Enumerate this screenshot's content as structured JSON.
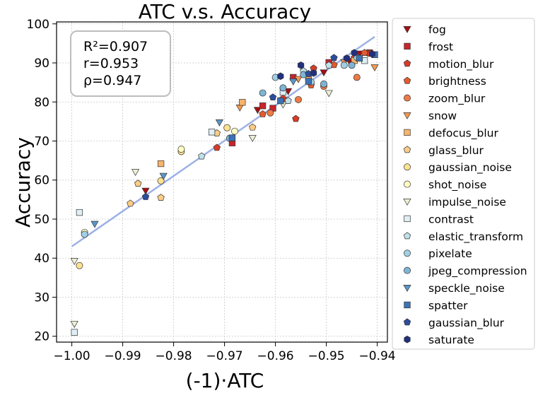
{
  "chart_data": {
    "type": "scatter",
    "title": "ATC  v.s.  Accuracy",
    "xlabel": "(-1)·ATC",
    "ylabel": "Accuracy",
    "xlim": [
      -1.003,
      -0.938
    ],
    "ylim": [
      18.5,
      100.5
    ],
    "xticks": [
      -1.0,
      -0.99,
      -0.98,
      -0.97,
      -0.96,
      -0.95,
      -0.94
    ],
    "xtick_labels": [
      "−1.00",
      "−0.99",
      "−0.98",
      "−0.97",
      "−0.96",
      "−0.95",
      "−0.94"
    ],
    "yticks": [
      20,
      30,
      40,
      50,
      60,
      70,
      80,
      90,
      100
    ],
    "ytick_labels": [
      "20",
      "30",
      "40",
      "50",
      "60",
      "70",
      "80",
      "90",
      "100"
    ],
    "grid": true,
    "legend_position": "outside-right",
    "stats": [
      "R²=0.907",
      "r=0.953",
      "ρ=0.947"
    ],
    "fit_line": {
      "x": [
        -1.0,
        -0.9405
      ],
      "y": [
        43.0,
        96.7
      ],
      "color": "#9db1e6"
    },
    "series": [
      {
        "name": "fog",
        "marker": "triangle-down",
        "color": "#a50f15",
        "points": [
          [
            -0.9855,
            57.3
          ],
          [
            -0.9635,
            78.0
          ],
          [
            -0.9575,
            82.8
          ],
          [
            -0.9505,
            87.6
          ],
          [
            -0.9455,
            90.5
          ],
          [
            -0.9435,
            92.4
          ]
        ]
      },
      {
        "name": "frost",
        "marker": "square",
        "color": "#c8242b",
        "points": [
          [
            -0.9685,
            69.5
          ],
          [
            -0.9625,
            79.0
          ],
          [
            -0.9605,
            78.4
          ],
          [
            -0.9565,
            86.3
          ],
          [
            -0.9495,
            90.1
          ],
          [
            -0.9415,
            92.6
          ]
        ]
      },
      {
        "name": "motion_blur",
        "marker": "pentagon",
        "color": "#d93b26",
        "points": [
          [
            -0.9715,
            68.3
          ],
          [
            -0.9585,
            80.9
          ],
          [
            -0.956,
            75.7
          ],
          [
            -0.9525,
            88.6
          ],
          [
            -0.9445,
            91.3
          ],
          [
            -0.9415,
            92.4
          ]
        ]
      },
      {
        "name": "brightness",
        "marker": "pentagon",
        "color": "#e55a2e",
        "points": [
          [
            -0.9625,
            76.9
          ],
          [
            -0.953,
            84.3
          ],
          [
            -0.9485,
            89.5
          ],
          [
            -0.9425,
            92.6
          ]
        ]
      },
      {
        "name": "zoom_blur",
        "marker": "circle",
        "color": "#ee7a45",
        "points": [
          [
            -0.961,
            77.2
          ],
          [
            -0.9555,
            80.6
          ],
          [
            -0.9505,
            84.0
          ],
          [
            -0.944,
            86.3
          ]
        ]
      },
      {
        "name": "snow",
        "marker": "triangle-down",
        "color": "#f49b51",
        "points": [
          [
            -0.967,
            78.6
          ],
          [
            -0.9555,
            85.9
          ],
          [
            -0.9465,
            90.2
          ],
          [
            -0.9405,
            88.9
          ]
        ]
      },
      {
        "name": "defocus_blur",
        "marker": "square",
        "color": "#f7b46c",
        "points": [
          [
            -0.9825,
            64.2
          ],
          [
            -0.9665,
            79.9
          ],
          [
            -0.9535,
            86.4
          ],
          [
            -0.9445,
            90.6
          ]
        ]
      },
      {
        "name": "glass_blur",
        "marker": "pentagon",
        "color": "#fccc86",
        "points": [
          [
            -0.9885,
            54.0
          ],
          [
            -0.987,
            59.1
          ],
          [
            -0.9825,
            55.5
          ],
          [
            -0.9715,
            72.0
          ],
          [
            -0.9645,
            73.5
          ]
        ]
      },
      {
        "name": "gaussian_noise",
        "marker": "circle",
        "color": "#fde28f",
        "points": [
          [
            -0.9985,
            38.1
          ],
          [
            -0.9825,
            59.8
          ],
          [
            -0.9785,
            67.3
          ],
          [
            -0.9695,
            73.4
          ]
        ]
      },
      {
        "name": "shot_noise",
        "marker": "circle",
        "color": "#fefdc1",
        "points": [
          [
            -0.9975,
            46.6
          ],
          [
            -0.9785,
            67.9
          ],
          [
            -0.968,
            72.5
          ]
        ]
      },
      {
        "name": "impulse_noise",
        "marker": "triangle-down",
        "color": "#eef0d6",
        "points": [
          [
            -0.9995,
            23.2
          ],
          [
            -0.9995,
            39.3
          ],
          [
            -0.9875,
            62.1
          ],
          [
            -0.9645,
            70.8
          ],
          [
            -0.9585,
            79.4
          ],
          [
            -0.9495,
            82.3
          ]
        ]
      },
      {
        "name": "contrast",
        "marker": "square",
        "color": "#def0f5",
        "points": [
          [
            -0.9995,
            21.0
          ],
          [
            -0.9985,
            51.7
          ],
          [
            -0.9725,
            72.3
          ],
          [
            -0.9585,
            82.5
          ],
          [
            -0.9425,
            90.6
          ]
        ]
      },
      {
        "name": "elastic_transform",
        "marker": "pentagon",
        "color": "#bfe1e8",
        "points": [
          [
            -0.9745,
            66.1
          ],
          [
            -0.9575,
            80.3
          ],
          [
            -0.9545,
            87.9
          ],
          [
            -0.9495,
            89.4
          ]
        ]
      },
      {
        "name": "pixelate",
        "marker": "circle",
        "color": "#a2cfe3",
        "points": [
          [
            -0.9975,
            46.1
          ],
          [
            -0.96,
            86.3
          ],
          [
            -0.953,
            85.1
          ],
          [
            -0.9465,
            89.4
          ],
          [
            -0.944,
            91.4
          ]
        ]
      },
      {
        "name": "jpeg_compression",
        "marker": "circle",
        "color": "#7eb5d6",
        "points": [
          [
            -0.969,
            70.7
          ],
          [
            -0.9625,
            82.3
          ],
          [
            -0.9585,
            83.6
          ],
          [
            -0.9545,
            87.0
          ],
          [
            -0.9505,
            84.6
          ],
          [
            -0.945,
            89.4
          ]
        ]
      },
      {
        "name": "speckle_noise",
        "marker": "triangle-down",
        "color": "#5b96c8",
        "points": [
          [
            -0.9955,
            48.8
          ],
          [
            -0.982,
            61.1
          ],
          [
            -0.971,
            74.8
          ],
          [
            -0.9565,
            85.3
          ]
        ]
      },
      {
        "name": "spatter",
        "marker": "square",
        "color": "#3d73b4",
        "points": [
          [
            -0.9685,
            70.8
          ],
          [
            -0.959,
            80.3
          ],
          [
            -0.9535,
            85.3
          ],
          [
            -0.9435,
            91.2
          ],
          [
            -0.9405,
            92.1
          ]
        ]
      },
      {
        "name": "gaussian_blur",
        "marker": "pentagon",
        "color": "#2c4d9e",
        "points": [
          [
            -0.9855,
            55.7
          ],
          [
            -0.9605,
            81.2
          ],
          [
            -0.9535,
            87.2
          ],
          [
            -0.9485,
            91.3
          ]
        ]
      },
      {
        "name": "saturate",
        "marker": "hexagon",
        "color": "#21317f",
        "points": [
          [
            -0.959,
            86.6
          ],
          [
            -0.955,
            89.4
          ],
          [
            -0.9525,
            87.4
          ],
          [
            -0.946,
            91.2
          ],
          [
            -0.9445,
            92.6
          ],
          [
            -0.941,
            92.3
          ]
        ]
      }
    ]
  }
}
